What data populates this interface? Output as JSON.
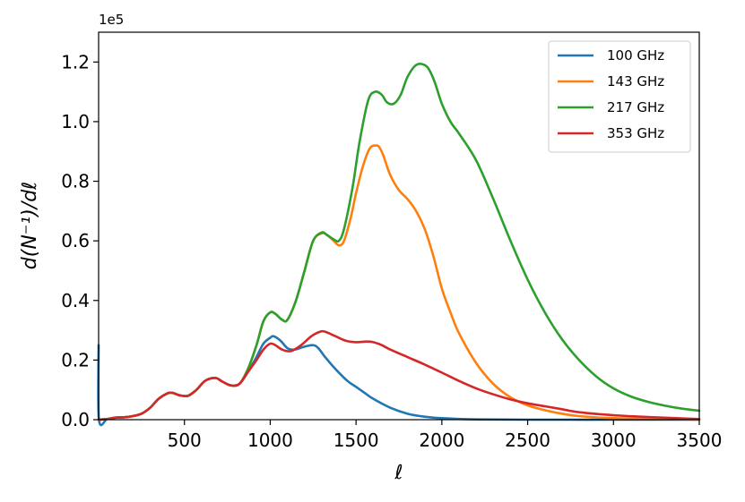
{
  "chart_data": {
    "type": "line",
    "xlabel": "ℓ",
    "ylabel": "d(N⁻¹)/dℓ",
    "y_multiplier": "1e5",
    "xlim": [
      0,
      3500
    ],
    "ylim": [
      0,
      1.3
    ],
    "xticks": [
      500,
      1000,
      1500,
      2000,
      2500,
      3000,
      3500
    ],
    "xtick_labels": [
      "500",
      "1000",
      "1500",
      "2000",
      "2500",
      "3000",
      "3500"
    ],
    "yticks": [
      0.0,
      0.2,
      0.4,
      0.6,
      0.8,
      1.0,
      1.2
    ],
    "ytick_labels": [
      "0.0",
      "0.2",
      "0.4",
      "0.6",
      "0.8",
      "1.0",
      "1.2"
    ],
    "grid": false,
    "legend_position": "top-right",
    "series": [
      {
        "name": "100 GHz",
        "color": "#1f77b4",
        "x": [
          0,
          2,
          50,
          100,
          150,
          200,
          250,
          300,
          350,
          400,
          430,
          470,
          520,
          570,
          620,
          680,
          720,
          770,
          820,
          870,
          920,
          960,
          1000,
          1020,
          1060,
          1100,
          1140,
          1200,
          1250,
          1280,
          1320,
          1380,
          1450,
          1500,
          1550,
          1600,
          1700,
          1800,
          1900,
          2000,
          2200,
          2500,
          3000,
          3500
        ],
        "y": [
          0.25,
          0.0,
          0.002,
          0.007,
          0.008,
          0.012,
          0.02,
          0.04,
          0.07,
          0.088,
          0.09,
          0.082,
          0.08,
          0.1,
          0.13,
          0.14,
          0.128,
          0.115,
          0.12,
          0.16,
          0.21,
          0.255,
          0.275,
          0.28,
          0.265,
          0.24,
          0.235,
          0.245,
          0.25,
          0.24,
          0.21,
          0.17,
          0.13,
          0.11,
          0.09,
          0.07,
          0.04,
          0.02,
          0.01,
          0.005,
          0.001,
          0.0,
          0.0,
          0.0
        ]
      },
      {
        "name": "143 GHz",
        "color": "#ff7f0e",
        "x": [
          0,
          50,
          100,
          150,
          200,
          250,
          300,
          350,
          400,
          430,
          470,
          520,
          570,
          620,
          680,
          720,
          770,
          820,
          870,
          920,
          960,
          1000,
          1030,
          1070,
          1100,
          1150,
          1200,
          1250,
          1300,
          1330,
          1370,
          1400,
          1430,
          1470,
          1500,
          1540,
          1580,
          1620,
          1640,
          1660,
          1700,
          1750,
          1800,
          1850,
          1900,
          1950,
          2000,
          2050,
          2100,
          2200,
          2300,
          2400,
          2500,
          2600,
          2700,
          2800,
          3000,
          3500
        ],
        "y": [
          0.0,
          0.002,
          0.007,
          0.008,
          0.012,
          0.02,
          0.04,
          0.07,
          0.088,
          0.09,
          0.082,
          0.08,
          0.1,
          0.13,
          0.14,
          0.128,
          0.115,
          0.12,
          0.17,
          0.25,
          0.33,
          0.36,
          0.355,
          0.335,
          0.335,
          0.4,
          0.5,
          0.6,
          0.625,
          0.62,
          0.6,
          0.585,
          0.6,
          0.68,
          0.76,
          0.85,
          0.91,
          0.92,
          0.91,
          0.885,
          0.82,
          0.77,
          0.74,
          0.7,
          0.64,
          0.55,
          0.44,
          0.36,
          0.29,
          0.19,
          0.12,
          0.075,
          0.048,
          0.032,
          0.02,
          0.012,
          0.005,
          0.0
        ]
      },
      {
        "name": "217 GHz",
        "color": "#2ca02c",
        "x": [
          0,
          50,
          100,
          150,
          200,
          250,
          300,
          350,
          400,
          430,
          470,
          520,
          570,
          620,
          680,
          720,
          770,
          820,
          870,
          920,
          960,
          1000,
          1030,
          1070,
          1100,
          1150,
          1200,
          1250,
          1300,
          1330,
          1370,
          1400,
          1430,
          1480,
          1520,
          1570,
          1610,
          1650,
          1680,
          1720,
          1760,
          1800,
          1850,
          1900,
          1930,
          1960,
          2000,
          2050,
          2100,
          2200,
          2300,
          2400,
          2500,
          2600,
          2700,
          2800,
          2900,
          3000,
          3100,
          3200,
          3300,
          3400,
          3500
        ],
        "y": [
          0.0,
          0.002,
          0.007,
          0.008,
          0.012,
          0.02,
          0.04,
          0.07,
          0.088,
          0.09,
          0.082,
          0.08,
          0.1,
          0.13,
          0.14,
          0.128,
          0.115,
          0.12,
          0.17,
          0.25,
          0.33,
          0.36,
          0.355,
          0.335,
          0.335,
          0.4,
          0.5,
          0.6,
          0.628,
          0.62,
          0.605,
          0.6,
          0.64,
          0.78,
          0.93,
          1.07,
          1.1,
          1.09,
          1.065,
          1.06,
          1.09,
          1.15,
          1.19,
          1.19,
          1.17,
          1.13,
          1.06,
          1.0,
          0.96,
          0.87,
          0.74,
          0.6,
          0.47,
          0.36,
          0.27,
          0.2,
          0.145,
          0.105,
          0.078,
          0.06,
          0.047,
          0.037,
          0.03
        ]
      },
      {
        "name": "353 GHz",
        "color": "#d62728",
        "x": [
          0,
          50,
          100,
          150,
          200,
          250,
          300,
          350,
          400,
          430,
          470,
          520,
          570,
          620,
          680,
          720,
          770,
          820,
          870,
          920,
          960,
          1000,
          1030,
          1070,
          1120,
          1180,
          1240,
          1290,
          1320,
          1380,
          1440,
          1500,
          1560,
          1600,
          1650,
          1700,
          1800,
          1900,
          2000,
          2100,
          2200,
          2300,
          2400,
          2500,
          2600,
          2700,
          2800,
          3000,
          3200,
          3500
        ],
        "y": [
          0.0,
          0.002,
          0.007,
          0.008,
          0.012,
          0.02,
          0.04,
          0.07,
          0.088,
          0.09,
          0.082,
          0.08,
          0.1,
          0.13,
          0.14,
          0.128,
          0.115,
          0.12,
          0.16,
          0.2,
          0.235,
          0.255,
          0.25,
          0.235,
          0.23,
          0.25,
          0.28,
          0.295,
          0.295,
          0.28,
          0.265,
          0.26,
          0.262,
          0.26,
          0.25,
          0.235,
          0.21,
          0.185,
          0.158,
          0.13,
          0.105,
          0.085,
          0.068,
          0.055,
          0.045,
          0.035,
          0.025,
          0.015,
          0.009,
          0.002
        ]
      }
    ]
  }
}
